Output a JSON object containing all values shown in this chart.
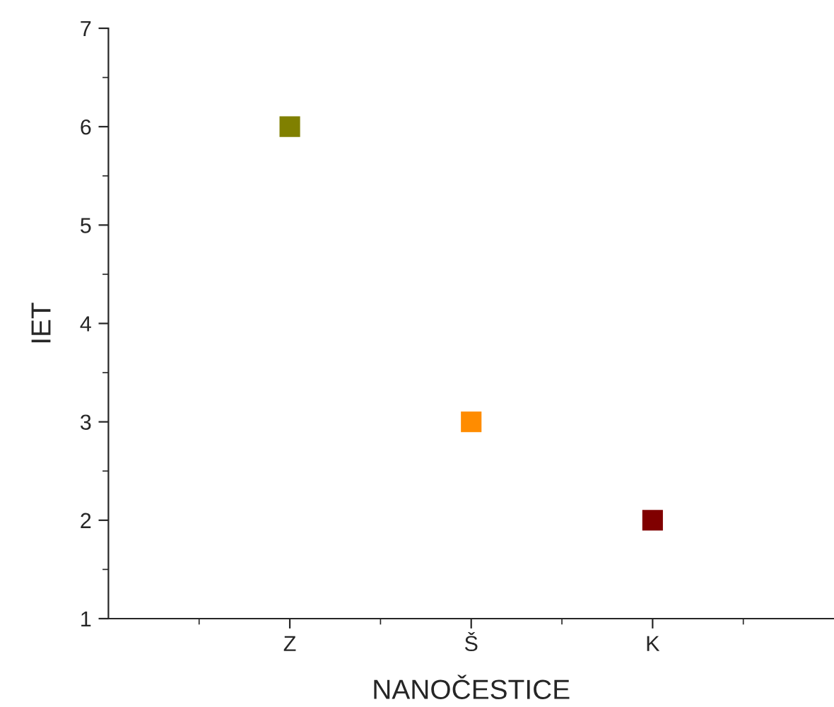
{
  "chart_data": {
    "type": "scatter",
    "xlabel": "NANOČESTICE",
    "ylabel": "IET",
    "categories": [
      "Z",
      "Š",
      "K"
    ],
    "values": [
      6,
      3,
      2
    ],
    "colors": [
      "#808000",
      "#ff8c00",
      "#800000"
    ],
    "marker": "square",
    "ylim": [
      1,
      7
    ],
    "yticks": [
      1,
      2,
      3,
      4,
      5,
      6,
      7
    ],
    "grid": false,
    "legend": false
  }
}
